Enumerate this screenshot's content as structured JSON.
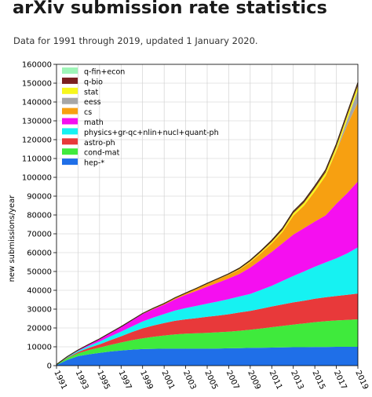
{
  "page": {
    "title": "arXiv submission rate statistics",
    "subtitle": "Data for 1991 through 2019, updated 1 January 2020."
  },
  "chart_data": {
    "type": "area",
    "stacked": true,
    "title": "",
    "xlabel": "",
    "ylabel": "new submissions/year",
    "x": [
      1991,
      1992,
      1993,
      1994,
      1995,
      1996,
      1997,
      1998,
      1999,
      2000,
      2001,
      2002,
      2003,
      2004,
      2005,
      2006,
      2007,
      2008,
      2009,
      2010,
      2011,
      2012,
      2013,
      2014,
      2015,
      2016,
      2017,
      2018,
      2019
    ],
    "xticks": [
      "1991",
      "1993",
      "1995",
      "1997",
      "1999",
      "2001",
      "2003",
      "2005",
      "2007",
      "2009",
      "2011",
      "2013",
      "2015",
      "2017",
      "2019"
    ],
    "yticks": [
      "0",
      "10000",
      "20000",
      "30000",
      "40000",
      "50000",
      "60000",
      "70000",
      "80000",
      "90000",
      "100000",
      "110000",
      "120000",
      "130000",
      "140000",
      "150000",
      "160000"
    ],
    "xlim": [
      1991,
      2019
    ],
    "ylim": [
      0,
      160000
    ],
    "grid": true,
    "legend_position": "top-left",
    "series": [
      {
        "name": "hep-*",
        "color": "#1f6fe8",
        "values": [
          300,
          3000,
          5000,
          6000,
          6800,
          7500,
          8000,
          8500,
          8800,
          8900,
          9000,
          9000,
          9000,
          9000,
          9000,
          9100,
          9200,
          9300,
          9400,
          9500,
          9600,
          9700,
          9800,
          9800,
          9900,
          9900,
          10000,
          10000,
          10000
        ]
      },
      {
        "name": "cond-mat",
        "color": "#3fea3c",
        "values": [
          200,
          1000,
          1500,
          2200,
          2800,
          3500,
          4300,
          5000,
          5700,
          6400,
          7000,
          7600,
          8000,
          8200,
          8400,
          8600,
          8800,
          9200,
          9700,
          10200,
          10800,
          11400,
          12000,
          12600,
          13200,
          13700,
          14000,
          14300,
          14600
        ]
      },
      {
        "name": "astro-ph",
        "color": "#e8393a",
        "values": [
          50,
          300,
          700,
          1200,
          1700,
          2500,
          3300,
          4300,
          5300,
          6000,
          6600,
          7200,
          7600,
          8000,
          8500,
          8900,
          9300,
          9700,
          10000,
          10500,
          11000,
          11400,
          11800,
          12100,
          12400,
          12700,
          13000,
          13300,
          13700
        ]
      },
      {
        "name": "physics+gr-qc+nlin+nucl+quant-ph",
        "color": "#16f2f2",
        "values": [
          50,
          300,
          600,
          1000,
          1500,
          2000,
          2500,
          3000,
          3600,
          4200,
          4800,
          5400,
          6000,
          6500,
          7000,
          7500,
          8000,
          8500,
          9000,
          10000,
          11000,
          12500,
          14000,
          15500,
          17000,
          18500,
          20000,
          22000,
          24500
        ]
      },
      {
        "name": "math",
        "color": "#f50ff0",
        "values": [
          0,
          200,
          500,
          900,
          1400,
          2000,
          2600,
          3300,
          4000,
          4500,
          5000,
          6000,
          7000,
          8000,
          9000,
          10000,
          11000,
          12000,
          14000,
          16000,
          18000,
          20000,
          22000,
          23000,
          24000,
          25000,
          29000,
          32000,
          35000
        ]
      },
      {
        "name": "cs",
        "color": "#f7a011",
        "values": [
          0,
          0,
          0,
          0,
          0,
          0,
          0,
          100,
          300,
          500,
          600,
          800,
          1000,
          1200,
          1500,
          1800,
          2000,
          2300,
          2800,
          3500,
          4500,
          6000,
          10000,
          12000,
          16000,
          21000,
          28000,
          36000,
          42000
        ]
      },
      {
        "name": "eess",
        "color": "#a6a6a6",
        "values": [
          0,
          0,
          0,
          0,
          0,
          0,
          0,
          0,
          0,
          0,
          0,
          0,
          0,
          0,
          0,
          0,
          0,
          0,
          0,
          0,
          0,
          0,
          0,
          0,
          0,
          0,
          300,
          2800,
          6500
        ]
      },
      {
        "name": "stat",
        "color": "#f7f71c",
        "values": [
          0,
          0,
          0,
          0,
          0,
          0,
          0,
          0,
          0,
          0,
          0,
          0,
          0,
          0,
          0,
          0,
          100,
          300,
          500,
          700,
          900,
          1100,
          1300,
          1500,
          1700,
          1800,
          2000,
          2200,
          2400
        ]
      },
      {
        "name": "q-bio",
        "color": "#7a1f1f",
        "values": [
          0,
          0,
          0,
          0,
          0,
          0,
          0,
          0,
          0,
          0,
          0,
          0,
          0,
          200,
          300,
          350,
          400,
          450,
          500,
          550,
          600,
          650,
          700,
          750,
          800,
          850,
          900,
          950,
          1000
        ]
      },
      {
        "name": "q-fin+econ",
        "color": "#9ef5b8",
        "values": [
          0,
          0,
          0,
          0,
          0,
          0,
          0,
          0,
          0,
          0,
          0,
          0,
          0,
          0,
          0,
          0,
          0,
          50,
          100,
          150,
          200,
          250,
          300,
          350,
          400,
          450,
          500,
          550,
          600
        ]
      }
    ]
  }
}
